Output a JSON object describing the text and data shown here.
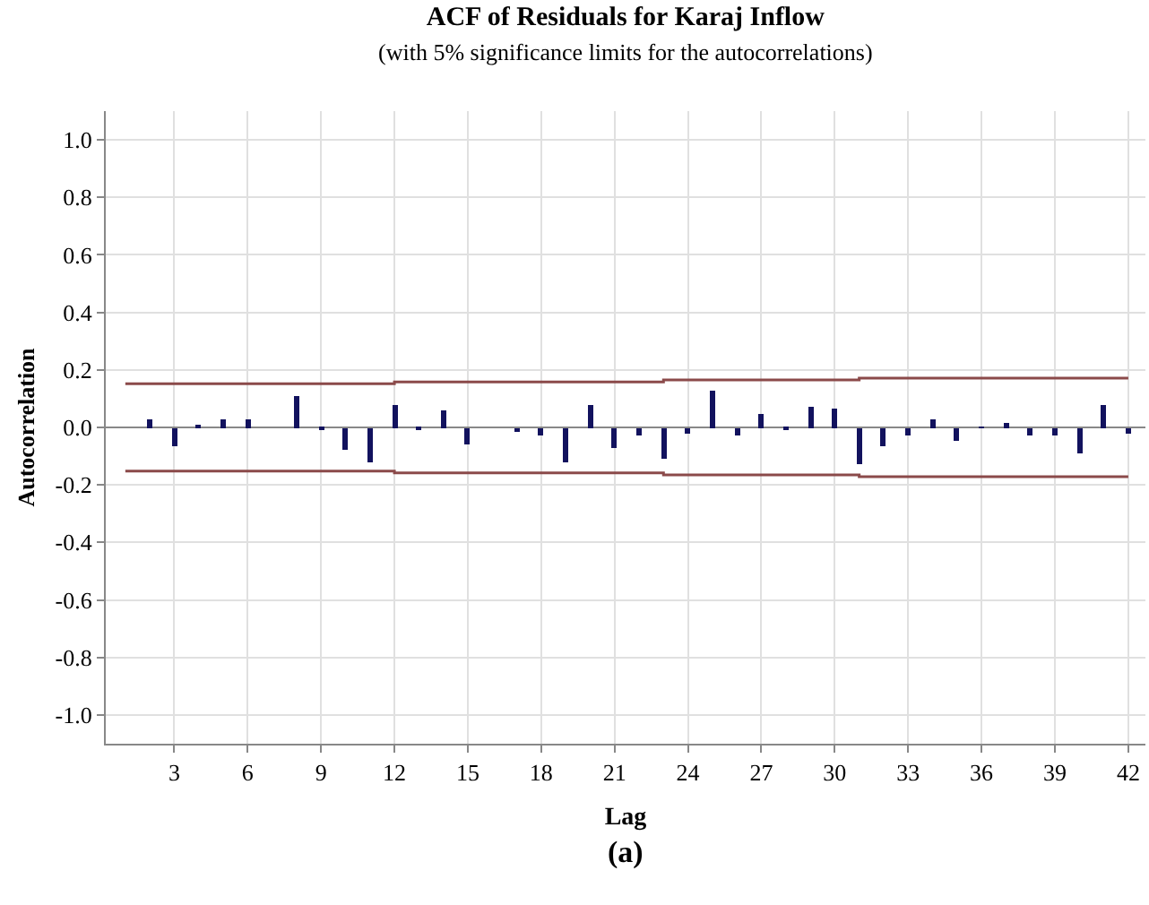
{
  "chart_data": {
    "type": "bar",
    "title": "ACF of Residuals for Karaj Inflow",
    "subtitle": "(with 5% significance limits for the autocorrelations)",
    "xlabel": "Lag",
    "ylabel": "Autocorrelation",
    "x": [
      1,
      2,
      3,
      4,
      5,
      6,
      7,
      8,
      9,
      10,
      11,
      12,
      13,
      14,
      15,
      16,
      17,
      18,
      19,
      20,
      21,
      22,
      23,
      24,
      25,
      26,
      27,
      28,
      29,
      30,
      31,
      32,
      33,
      34,
      35,
      36,
      37,
      38,
      39,
      40,
      41,
      42
    ],
    "series": [
      {
        "color": "#12125e",
        "values": [
          0.0,
          0.025,
          -0.066,
          0.012,
          0.029,
          0.025,
          0.0,
          0.107,
          -0.008,
          -0.078,
          -0.123,
          0.078,
          -0.01,
          0.06,
          -0.062,
          0.0,
          -0.014,
          -0.025,
          -0.119,
          0.08,
          -0.072,
          -0.027,
          -0.107,
          -0.023,
          0.125,
          -0.031,
          0.049,
          -0.004,
          0.072,
          0.064,
          -0.127,
          -0.066,
          -0.029,
          0.027,
          -0.045,
          0.002,
          0.014,
          -0.025,
          -0.025,
          -0.092,
          0.08,
          -0.023
        ]
      },
      {
        "type": "step",
        "color": "#8b4a4a",
        "x": [
          1,
          12,
          23,
          31,
          42
        ],
        "values": [
          0.152,
          0.158,
          0.165,
          0.171,
          0.171
        ]
      },
      {
        "type": "step",
        "color": "#8b4a4a",
        "x": [
          1,
          12,
          23,
          31,
          42
        ],
        "values": [
          -0.152,
          -0.158,
          -0.165,
          -0.171,
          -0.171
        ]
      }
    ],
    "xlim": [
      0.2,
      42.7
    ],
    "xticks": [
      3,
      6,
      9,
      12,
      15,
      18,
      21,
      24,
      27,
      30,
      33,
      36,
      39,
      42
    ],
    "ylim": [
      -1.1,
      1.1
    ],
    "yticks": [
      {
        "value": -1,
        "label": "-1.0"
      },
      {
        "value": -0.8,
        "label": "-0.8"
      },
      {
        "value": -0.6,
        "label": "-0.6"
      },
      {
        "value": -0.4,
        "label": "-0.4"
      },
      {
        "value": -0.2,
        "label": "-0.2"
      },
      {
        "value": 0,
        "label": "0.0"
      },
      {
        "value": 0.2,
        "label": "0.2"
      },
      {
        "value": 0.4,
        "label": "0.4"
      },
      {
        "value": 0.6,
        "label": "0.6"
      },
      {
        "value": 0.8,
        "label": "0.8"
      },
      {
        "value": 1,
        "label": "1.0"
      }
    ],
    "grid": true,
    "legend": false,
    "annotations": [
      "(a)"
    ]
  }
}
